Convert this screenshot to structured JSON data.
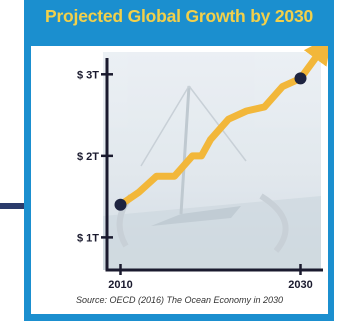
{
  "chart_data": {
    "type": "line",
    "title": "Projected Global Growth by 2030",
    "y_tick_labels": [
      "$ 3T",
      "$ 2T",
      "$ 1T"
    ],
    "y_ticks": [
      3,
      2,
      1
    ],
    "x_tick_labels": [
      "2010",
      "2030"
    ],
    "ylim": [
      0.6,
      3.2
    ],
    "xlim": [
      2008.5,
      2032.5
    ],
    "series": [
      {
        "values_x": [
          2010,
          2012,
          2014,
          2016,
          2018,
          2019,
          2020,
          2022,
          2024,
          2026,
          2028,
          2030,
          2032
        ],
        "values_y": [
          1.4,
          1.55,
          1.75,
          1.75,
          2.0,
          2.0,
          2.2,
          2.45,
          2.55,
          2.6,
          2.85,
          2.95,
          3.25
        ],
        "color": "#f2b73a"
      }
    ],
    "endpoints": [
      {
        "x": 2010,
        "y": 1.4
      },
      {
        "x": 2030,
        "y": 2.95
      }
    ],
    "source": "Source: OECD (2016) The Ocean Economy in 2030"
  },
  "colors": {
    "frame": "#1b8fcf",
    "title": "#f2d04a",
    "axis": "#1a1a2e",
    "line": "#f2b73a",
    "marker": "#1e2440"
  }
}
